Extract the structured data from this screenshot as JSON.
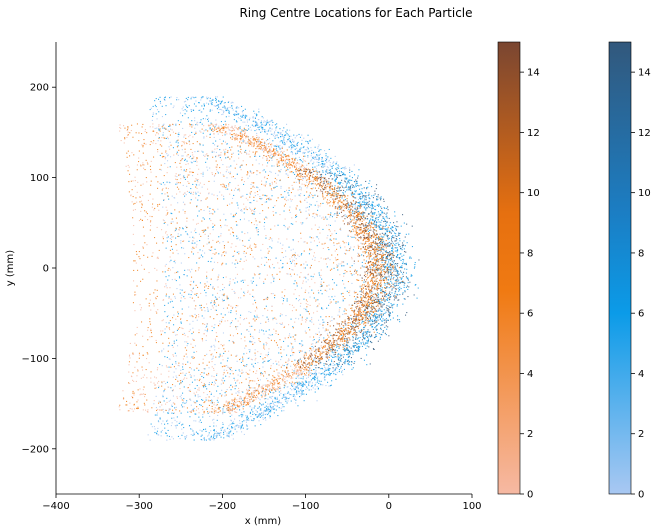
{
  "chart_data": {
    "type": "heatmap",
    "title": "Ring Centre Locations for Each Particle",
    "xlabel": "x (mm)",
    "ylabel": "y (mm)",
    "xlim": [
      -400,
      100
    ],
    "ylim": [
      -250,
      250
    ],
    "xticks": [
      -400,
      -300,
      -200,
      -100,
      0,
      100
    ],
    "yticks": [
      -200,
      -100,
      0,
      100,
      200
    ],
    "grid": false,
    "series": [
      {
        "colormap": "orange",
        "color_low": "#f6b9a3",
        "color_mid": "#f07a12",
        "color_high": "#7a4631",
        "apex": [
          -15,
          0
        ],
        "x_extent": [
          -340,
          10
        ],
        "y_extent": [
          -160,
          160
        ]
      },
      {
        "colormap": "blue",
        "color_low": "#a9c8f2",
        "color_mid": "#0b9be8",
        "color_high": "#32587c",
        "apex": [
          5,
          0
        ],
        "x_extent": [
          -300,
          20
        ],
        "y_extent": [
          -190,
          190
        ]
      }
    ],
    "colorbars": [
      {
        "colormap": "orange",
        "range": [
          0,
          15
        ],
        "ticks": [
          0,
          2,
          4,
          6,
          8,
          10,
          12,
          14
        ]
      },
      {
        "colormap": "blue",
        "range": [
          0,
          15
        ],
        "ticks": [
          0,
          2,
          4,
          6,
          8,
          10,
          12,
          14
        ]
      }
    ]
  }
}
